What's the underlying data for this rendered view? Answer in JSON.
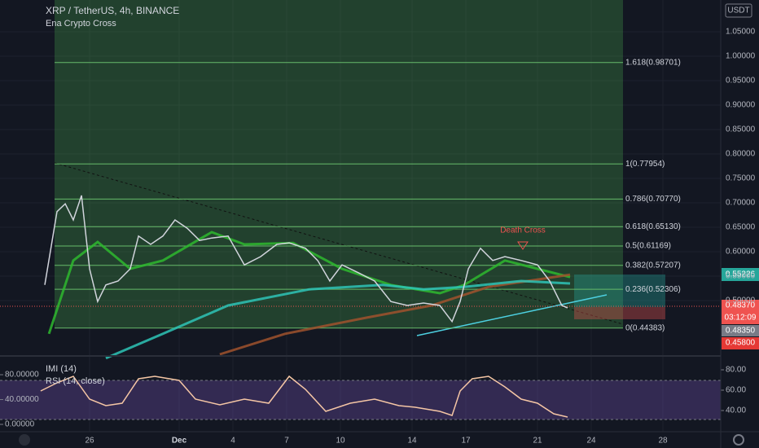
{
  "chart_data": {
    "type": "line",
    "title": "XRP / TetherUS, 4h, BINANCE",
    "subtitle": "Ena Crypto Cross",
    "unit": "USDT",
    "x": [
      -2.5,
      -1.82,
      -1.36,
      -0.91,
      -0.45,
      0,
      0.45,
      0.91,
      1.59,
      2.27,
      2.73,
      3.41,
      4.09,
      4.77,
      5.45,
      6.14,
      6.82,
      7.73,
      8.64,
      9.55,
      10.45,
      11.14,
      12.05,
      12.73,
      13.41,
      14.09,
      15,
      15.91,
      16.82,
      17.73,
      18.64,
      19.55,
      20.23,
      20.68,
      21.14,
      21.82,
      22.5,
      23.18,
      24.09,
      25,
      25.68,
      26.36,
      26.68
    ],
    "values": [
      0.532,
      0.682,
      0.698,
      0.665,
      0.715,
      0.565,
      0.498,
      0.532,
      0.54,
      0.565,
      0.632,
      0.615,
      0.632,
      0.665,
      0.648,
      0.623,
      0.628,
      0.632,
      0.573,
      0.59,
      0.615,
      0.618,
      0.607,
      0.582,
      0.54,
      0.573,
      0.557,
      0.54,
      0.498,
      0.49,
      0.495,
      0.49,
      0.457,
      0.498,
      0.565,
      0.607,
      0.582,
      0.59,
      0.582,
      0.573,
      0.54,
      0.49,
      0.485
    ],
    "color": "#d1d4dc",
    "averages": [
      {
        "color": "#2eb82e",
        "x": [
          -2.27,
          -0.91,
          0.45,
          2.27,
          4.09,
          6.82,
          8.64,
          11.36,
          14.09,
          16.82,
          19.55,
          20.91,
          23.18,
          25,
          26.82
        ],
        "values": [
          0.432,
          0.582,
          0.62,
          0.565,
          0.582,
          0.64,
          0.615,
          0.618,
          0.565,
          0.532,
          0.515,
          0.532,
          0.582,
          0.565,
          0.548
        ]
      },
      {
        "color": "#a0522d",
        "x": [
          7.27,
          10.91,
          15.45,
          19.09,
          22.27,
          26.82
        ],
        "values": [
          0.39,
          0.432,
          0.465,
          0.49,
          0.528,
          0.553
        ]
      },
      {
        "color": "#2ec4b6",
        "x": [
          0.91,
          4.09,
          7.73,
          12.27,
          16.36,
          18.64,
          20.91,
          24.09,
          26.82
        ],
        "values": [
          0.382,
          0.432,
          0.49,
          0.523,
          0.532,
          0.523,
          0.528,
          0.54,
          0.535
        ]
      }
    ],
    "fib_levels": [
      {
        "value": 0.98701,
        "label": "1.618(0.98701)"
      },
      {
        "value": 0.77954,
        "label": "1(0.77954)"
      },
      {
        "value": 0.7077,
        "label": "0.786(0.70770)"
      },
      {
        "value": 0.6513,
        "label": "0.618(0.65130)"
      },
      {
        "value": 0.61169,
        "label": "0.5(0.61169)"
      },
      {
        "value": 0.57207,
        "label": "0.382(0.57207)"
      },
      {
        "value": 0.52306,
        "label": "0.236(0.52306)"
      },
      {
        "value": 0.44383,
        "label": "0(0.44383)"
      }
    ],
    "annotation": "Death Cross",
    "xlim": [
      -5,
      35.227
    ],
    "xticks": [
      {
        "value": 0,
        "label": "26"
      },
      {
        "value": 5,
        "label": "Dec"
      },
      {
        "value": 8,
        "label": "4"
      },
      {
        "value": 11,
        "label": "7"
      },
      {
        "value": 14,
        "label": "10"
      },
      {
        "value": 18,
        "label": "14"
      },
      {
        "value": 21,
        "label": "17"
      },
      {
        "value": 25,
        "label": "21"
      },
      {
        "value": 28,
        "label": "24"
      },
      {
        "value": 32,
        "label": "28"
      }
    ],
    "ylim": [
      0.39,
      1.115
    ],
    "yticks": [
      {
        "value": 0.5,
        "label": "0.50000"
      },
      {
        "value": 0.55,
        "label": "0.55000"
      },
      {
        "value": 0.6,
        "label": "0.60000"
      },
      {
        "value": 0.65,
        "label": "0.65000"
      },
      {
        "value": 0.7,
        "label": "0.70000"
      },
      {
        "value": 0.75,
        "label": "0.75000"
      },
      {
        "value": 0.8,
        "label": "0.80000"
      },
      {
        "value": 0.85,
        "label": "0.85000"
      },
      {
        "value": 0.9,
        "label": "0.90000"
      },
      {
        "value": 0.95,
        "label": "0.95000"
      },
      {
        "value": 1.0,
        "label": "1.00000"
      },
      {
        "value": 1.05,
        "label": "1.05000"
      }
    ],
    "price_labels": [
      "0.55226",
      "0.48370",
      "03:12:09",
      "0.48350",
      "0.45800"
    ],
    "grid": true,
    "indicator": {
      "labels": [
        "IMI (14)",
        "RSI (14, close)"
      ],
      "ylim": [
        -11.8,
        108.9
      ],
      "yticks": [
        {
          "value": 80,
          "label": "80.00000"
        },
        {
          "value": 40,
          "label": "40.00000"
        },
        {
          "value": 0,
          "label": "0.00000"
        }
      ],
      "y2lim": [
        19.2,
        92.8
      ],
      "y2ticks": [
        {
          "value": 80,
          "label": "80.00"
        },
        {
          "value": 60,
          "label": "60.00"
        },
        {
          "value": 40,
          "label": "40.00"
        }
      ],
      "series": [
        {
          "axis": "y2",
          "color": "#f5c6a5",
          "x": [
            -2.73,
            -1.82,
            -0.91,
            0,
            0.91,
            1.82,
            2.73,
            3.64,
            5,
            5.91,
            7.27,
            8.64,
            10,
            11.14,
            12.05,
            13.18,
            14.55,
            15.91,
            17.27,
            18.18,
            19.55,
            20.23,
            20.68,
            21.36,
            22.27,
            23.18,
            24.09,
            25,
            25.91,
            26.68
          ],
          "values": [
            59.2,
            67.2,
            73.6,
            51.2,
            44.8,
            47.2,
            71.2,
            73.6,
            69.6,
            51.2,
            45.6,
            51.2,
            47.2,
            73.6,
            60.8,
            39.2,
            47.2,
            51.2,
            44.8,
            43.2,
            39.2,
            35.2,
            59.2,
            71.2,
            73.6,
            63.2,
            51.2,
            47.2,
            36.8,
            33.6
          ]
        }
      ]
    }
  }
}
